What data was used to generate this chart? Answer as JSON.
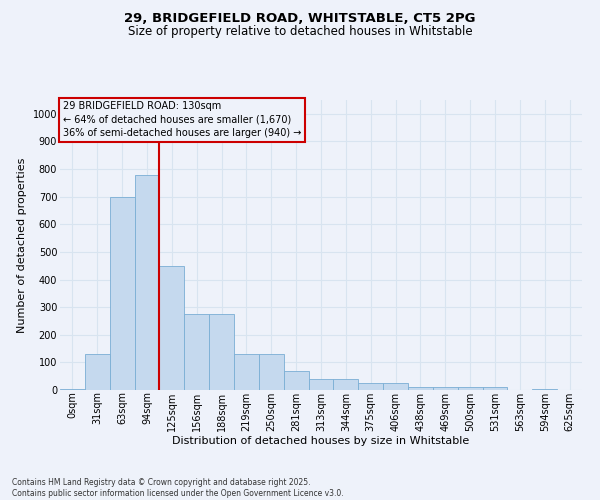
{
  "title_line1": "29, BRIDGEFIELD ROAD, WHITSTABLE, CT5 2PG",
  "title_line2": "Size of property relative to detached houses in Whitstable",
  "xlabel": "Distribution of detached houses by size in Whitstable",
  "ylabel": "Number of detached properties",
  "footnote1": "Contains HM Land Registry data © Crown copyright and database right 2025.",
  "footnote2": "Contains public sector information licensed under the Open Government Licence v3.0.",
  "bin_labels": [
    "0sqm",
    "31sqm",
    "63sqm",
    "94sqm",
    "125sqm",
    "156sqm",
    "188sqm",
    "219sqm",
    "250sqm",
    "281sqm",
    "313sqm",
    "344sqm",
    "375sqm",
    "406sqm",
    "438sqm",
    "469sqm",
    "500sqm",
    "531sqm",
    "563sqm",
    "594sqm",
    "625sqm"
  ],
  "bar_values": [
    5,
    130,
    700,
    780,
    450,
    275,
    275,
    130,
    130,
    70,
    40,
    40,
    25,
    25,
    10,
    10,
    10,
    10,
    0,
    5,
    0
  ],
  "bar_color": "#c5d9ee",
  "bar_edge_color": "#7aaed4",
  "property_line_x": 4,
  "property_line_color": "#cc0000",
  "annotation_text": "29 BRIDGEFIELD ROAD: 130sqm\n← 64% of detached houses are smaller (1,670)\n36% of semi-detached houses are larger (940) →",
  "annotation_box_edgecolor": "#cc0000",
  "ylim": [
    0,
    1050
  ],
  "yticks": [
    0,
    100,
    200,
    300,
    400,
    500,
    600,
    700,
    800,
    900,
    1000
  ],
  "background_color": "#eef2fa",
  "grid_color": "#d8e4f0",
  "title_fontsize": 9.5,
  "subtitle_fontsize": 8.5,
  "axis_label_fontsize": 8,
  "tick_fontsize": 7,
  "annot_fontsize": 7
}
